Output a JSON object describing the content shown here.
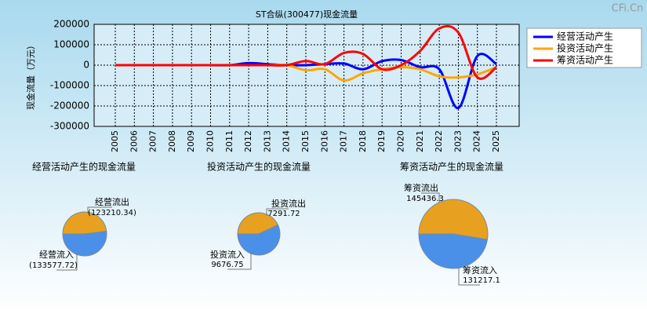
{
  "watermark": "CFi.Cn",
  "chart_data": [
    {
      "type": "line",
      "title": "ST合纵(300477)现金流量",
      "y_label": "现金流量（万元）",
      "categories": [
        "2005",
        "2006",
        "2007",
        "2008",
        "2009",
        "2010",
        "2011",
        "2012",
        "2013",
        "2014",
        "2015",
        "2016",
        "2017",
        "2018",
        "2019",
        "2020",
        "2021",
        "2022",
        "2023",
        "2024",
        "2025"
      ],
      "series": [
        {
          "name": "经营活动产生",
          "color": "#0000ff",
          "values": [
            0,
            0,
            0,
            0,
            0,
            0,
            0,
            10000,
            5000,
            0,
            0,
            5000,
            8000,
            -20000,
            20000,
            25000,
            -10000,
            -20000,
            -210000,
            45000,
            5000
          ]
        },
        {
          "name": "投资活动产生",
          "color": "#ffa500",
          "values": [
            0,
            0,
            0,
            0,
            0,
            0,
            0,
            0,
            0,
            0,
            -25000,
            -20000,
            -75000,
            -40000,
            -20000,
            -10000,
            -20000,
            -55000,
            -60000,
            -45000,
            -10000
          ]
        },
        {
          "name": "筹资活动产生",
          "color": "#ff0000",
          "values": [
            0,
            0,
            0,
            0,
            0,
            0,
            0,
            0,
            0,
            0,
            20000,
            5000,
            60000,
            55000,
            -20000,
            0,
            70000,
            180000,
            160000,
            -60000,
            -10000
          ]
        }
      ],
      "ylim": [
        -300000,
        200000
      ],
      "yticks": [
        -300000,
        -200000,
        -100000,
        0,
        100000,
        200000
      ],
      "grid": true,
      "legend": "outside right"
    },
    {
      "type": "pie",
      "title": "经营活动产生的现金流量",
      "categories": [
        "经营流出",
        "经营流入"
      ],
      "values": [
        123210.34,
        133577.72
      ],
      "value_labels": [
        "(123210.34)",
        "(133577.72)"
      ],
      "colors": [
        "#e8a020",
        "#4a90e8"
      ]
    },
    {
      "type": "pie",
      "title": "投资活动产生的现金流量",
      "categories": [
        "投资流出",
        "投资流入"
      ],
      "values": [
        7291.72,
        9676.75
      ],
      "colors": [
        "#e8a020",
        "#4a90e8"
      ]
    },
    {
      "type": "pie",
      "title": "筹资活动产生的现金流量",
      "categories": [
        "筹资流出",
        "筹资流入"
      ],
      "values": [
        145436.3,
        131217.1
      ],
      "colors": [
        "#e8a020",
        "#4a90e8"
      ]
    }
  ]
}
